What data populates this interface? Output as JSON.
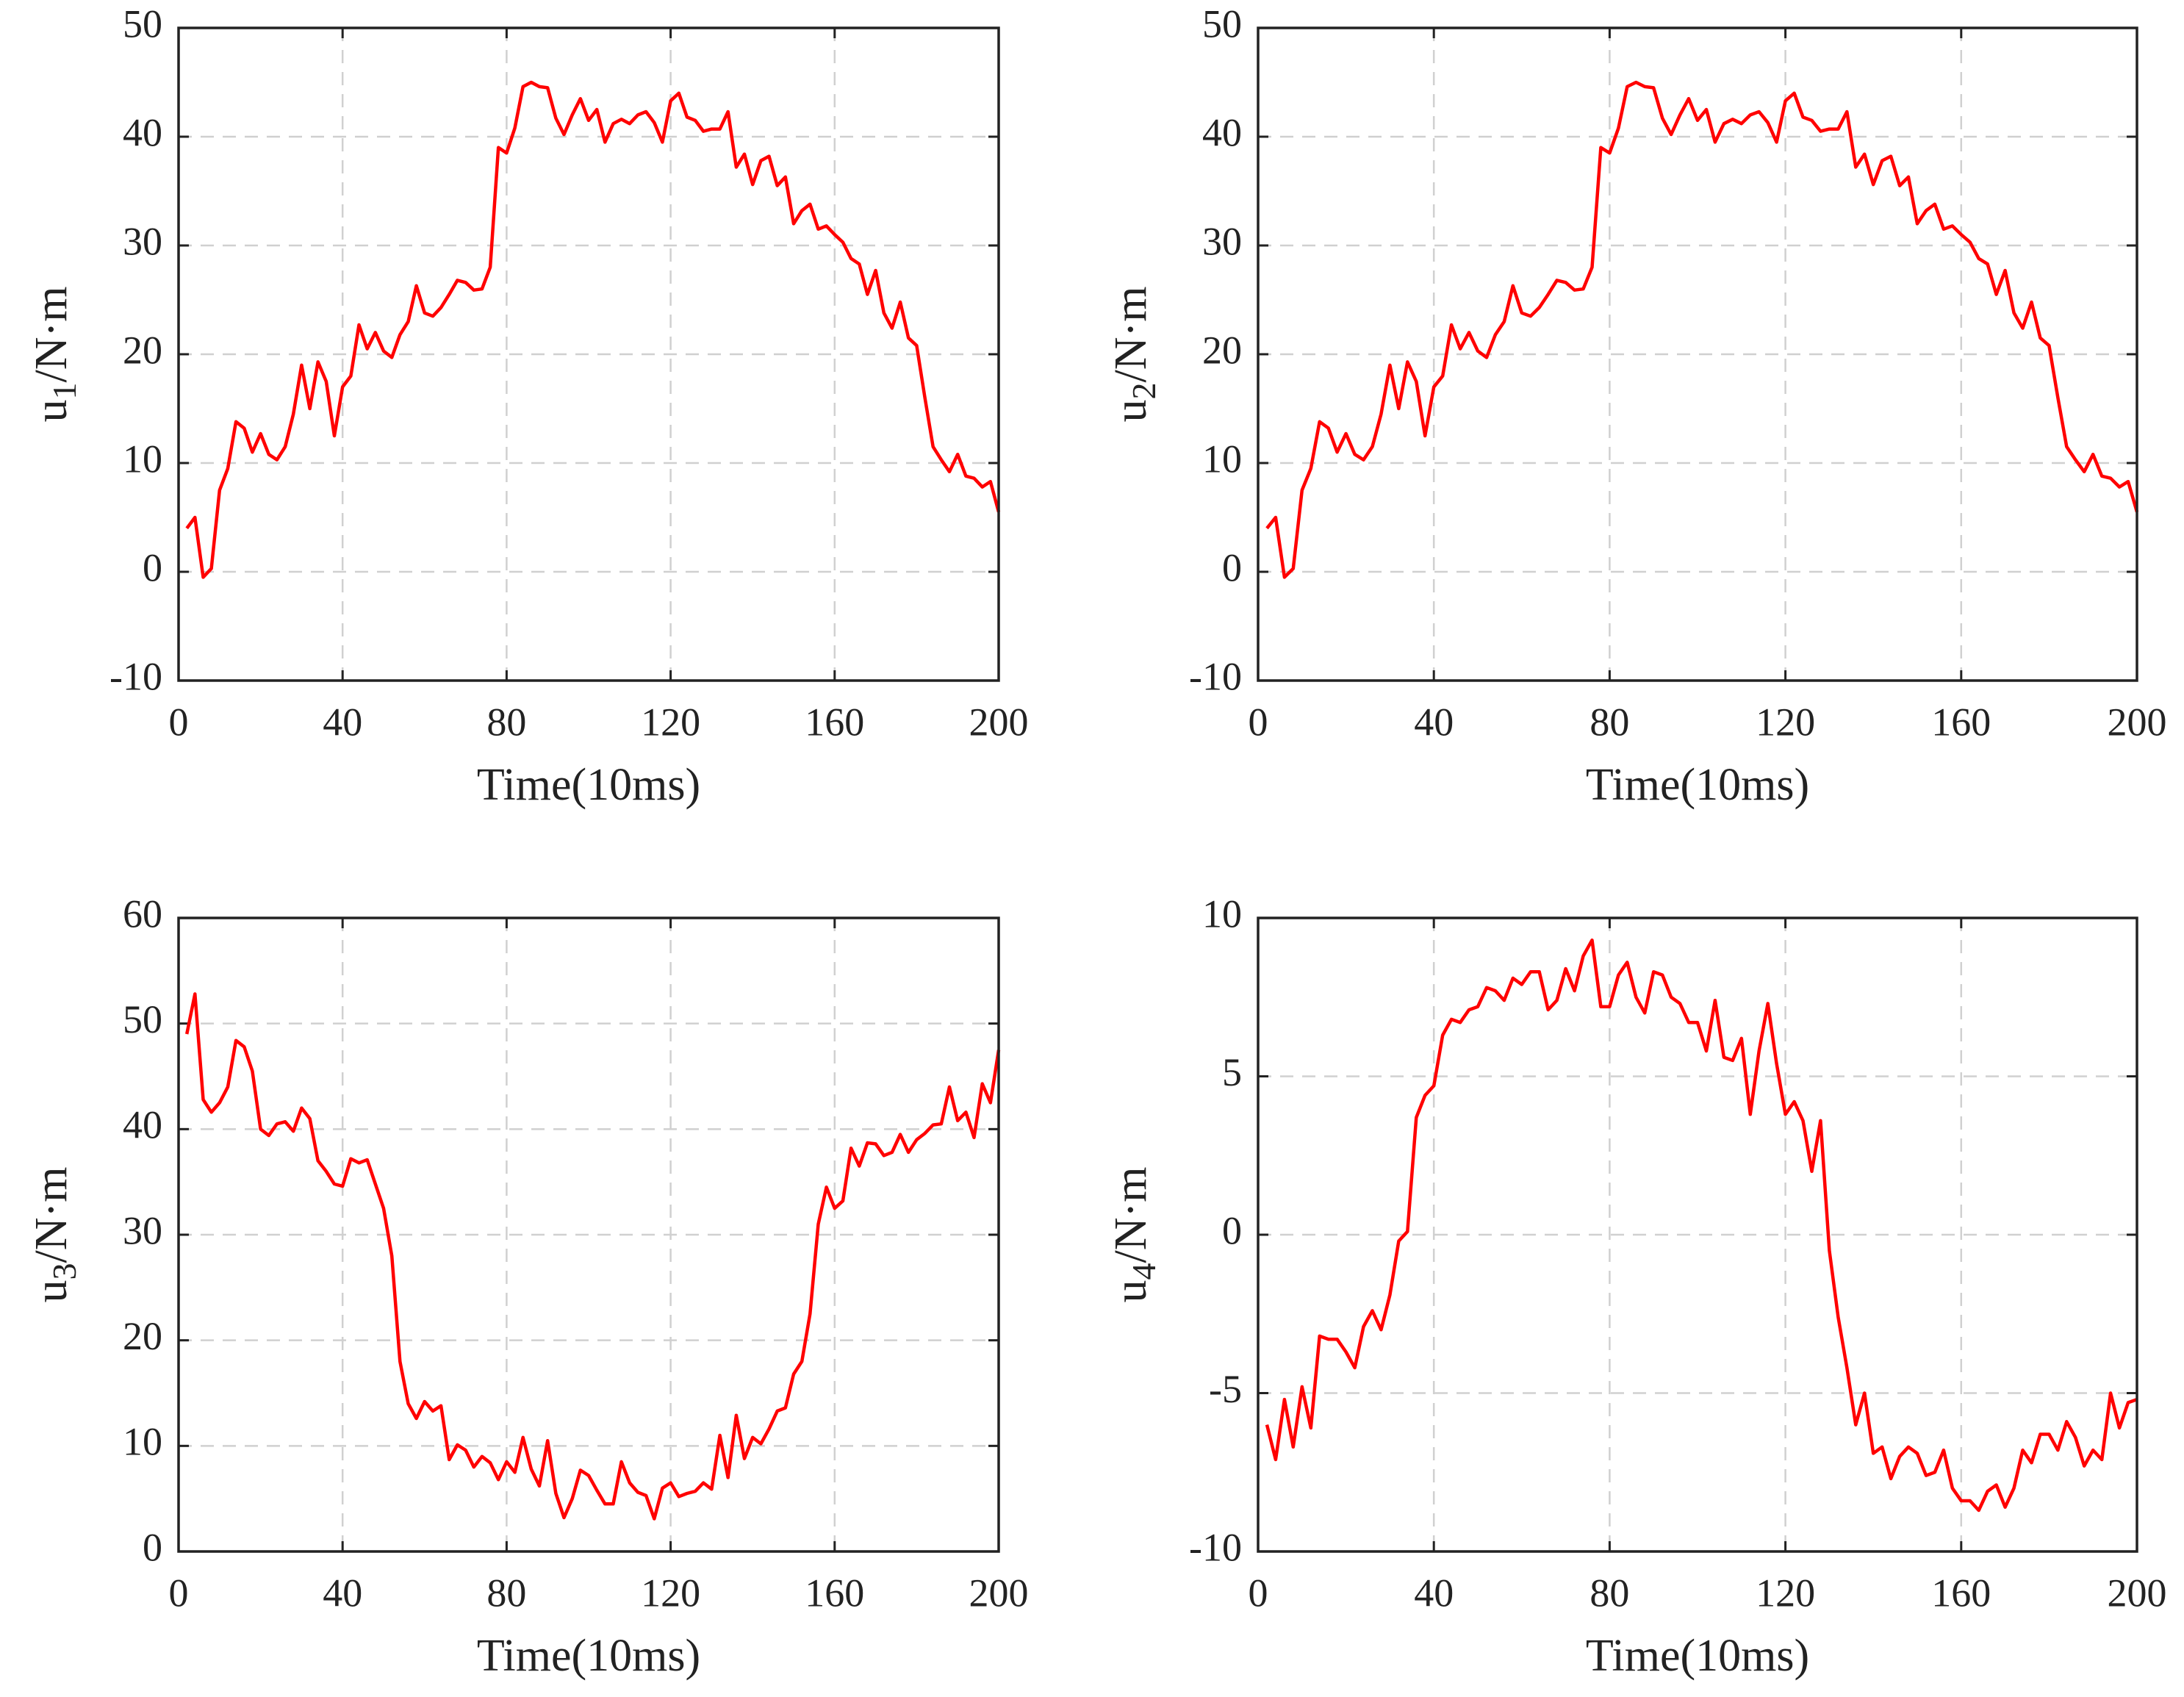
{
  "chart_data": [
    {
      "type": "line",
      "xlabel": "Time(10ms)",
      "ylabel": [
        "u",
        "1",
        "/N·m"
      ],
      "x": [
        2,
        4,
        6,
        8,
        10,
        12,
        14,
        16,
        18,
        20,
        22,
        24,
        26,
        28,
        30,
        32,
        34,
        36,
        38,
        40,
        42,
        44,
        46,
        48,
        50,
        52,
        54,
        56,
        58,
        60,
        62,
        64,
        66,
        68,
        70,
        72,
        74,
        76,
        78,
        80,
        82,
        84,
        86,
        88,
        90,
        92,
        94,
        96,
        98,
        100,
        102,
        104,
        106,
        108,
        110,
        112,
        114,
        116,
        118,
        120,
        122,
        124,
        126,
        128,
        130,
        132,
        134,
        136,
        138,
        140,
        142,
        144,
        146,
        148,
        150,
        152,
        154,
        156,
        158,
        160,
        162,
        164,
        166,
        168,
        170,
        172,
        174,
        176,
        178,
        180,
        182,
        184,
        186,
        188,
        190,
        192,
        194,
        196,
        198,
        200
      ],
      "series": [
        {
          "color": "#ff0000",
          "values": [
            4,
            5,
            -0.5,
            0.3,
            7.5,
            9.5,
            13.8,
            13.2,
            11,
            12.7,
            10.8,
            10.3,
            11.5,
            14.5,
            19,
            15,
            19.3,
            17.5,
            12.5,
            17,
            18,
            22.7,
            20.5,
            22,
            20.3,
            19.7,
            21.8,
            23,
            26.3,
            23.8,
            23.5,
            24.3,
            25.5,
            26.8,
            26.6,
            25.9,
            26,
            28,
            39,
            38.5,
            40.8,
            44.6,
            45,
            44.6,
            44.5,
            41.7,
            40.2,
            42,
            43.5,
            41.5,
            42.5,
            39.5,
            41.2,
            41.6,
            41.2,
            42,
            42.3,
            41.3,
            39.5,
            43.3,
            44,
            41.8,
            41.5,
            40.5,
            40.7,
            40.7,
            42.3,
            37.2,
            38.4,
            35.6,
            37.8,
            38.2,
            35.5,
            36.3,
            32,
            33.2,
            33.8,
            31.5,
            31.8,
            31,
            30.3,
            28.8,
            28.3,
            25.5,
            27.7,
            23.8,
            22.4,
            24.8,
            21.5,
            20.8,
            16,
            11.5,
            10.3,
            9.2,
            10.8,
            8.8,
            8.6,
            7.8,
            8.3,
            5.5
          ]
        }
      ],
      "xlim": [
        0,
        200
      ],
      "ylim": [
        -10,
        50
      ],
      "xticks": [
        0,
        40,
        80,
        120,
        160,
        200
      ],
      "yticks": [
        -10,
        0,
        10,
        20,
        30,
        40,
        50
      ],
      "grid": true
    },
    {
      "type": "line",
      "xlabel": "Time(10ms)",
      "ylabel": [
        "u",
        "2",
        "/N·m"
      ],
      "x": [
        2,
        4,
        6,
        8,
        10,
        12,
        14,
        16,
        18,
        20,
        22,
        24,
        26,
        28,
        30,
        32,
        34,
        36,
        38,
        40,
        42,
        44,
        46,
        48,
        50,
        52,
        54,
        56,
        58,
        60,
        62,
        64,
        66,
        68,
        70,
        72,
        74,
        76,
        78,
        80,
        82,
        84,
        86,
        88,
        90,
        92,
        94,
        96,
        98,
        100,
        102,
        104,
        106,
        108,
        110,
        112,
        114,
        116,
        118,
        120,
        122,
        124,
        126,
        128,
        130,
        132,
        134,
        136,
        138,
        140,
        142,
        144,
        146,
        148,
        150,
        152,
        154,
        156,
        158,
        160,
        162,
        164,
        166,
        168,
        170,
        172,
        174,
        176,
        178,
        180,
        182,
        184,
        186,
        188,
        190,
        192,
        194,
        196,
        198,
        200
      ],
      "series": [
        {
          "color": "#ff0000",
          "values": [
            4,
            5,
            -0.5,
            0.3,
            7.5,
            9.5,
            13.8,
            13.2,
            11,
            12.7,
            10.8,
            10.3,
            11.5,
            14.5,
            19,
            15,
            19.3,
            17.5,
            12.5,
            17,
            18,
            22.7,
            20.5,
            22,
            20.3,
            19.7,
            21.8,
            23,
            26.3,
            23.8,
            23.5,
            24.3,
            25.5,
            26.8,
            26.6,
            25.9,
            26,
            28,
            39,
            38.5,
            40.8,
            44.6,
            45,
            44.6,
            44.5,
            41.7,
            40.2,
            42,
            43.5,
            41.5,
            42.5,
            39.5,
            41.2,
            41.6,
            41.2,
            42,
            42.3,
            41.3,
            39.5,
            43.3,
            44,
            41.8,
            41.5,
            40.5,
            40.7,
            40.7,
            42.3,
            37.2,
            38.4,
            35.6,
            37.8,
            38.2,
            35.5,
            36.3,
            32,
            33.2,
            33.8,
            31.5,
            31.8,
            31,
            30.3,
            28.8,
            28.3,
            25.5,
            27.7,
            23.8,
            22.4,
            24.8,
            21.5,
            20.8,
            16,
            11.5,
            10.3,
            9.2,
            10.8,
            8.8,
            8.6,
            7.8,
            8.3,
            5.5
          ]
        }
      ],
      "xlim": [
        0,
        200
      ],
      "ylim": [
        -10,
        50
      ],
      "xticks": [
        0,
        40,
        80,
        120,
        160,
        200
      ],
      "yticks": [
        -10,
        0,
        10,
        20,
        30,
        40,
        50
      ],
      "grid": true
    },
    {
      "type": "line",
      "xlabel": "Time(10ms)",
      "ylabel": [
        "u",
        "3",
        "/N·m"
      ],
      "x": [
        2,
        4,
        6,
        8,
        10,
        12,
        14,
        16,
        18,
        20,
        22,
        24,
        26,
        28,
        30,
        32,
        34,
        36,
        38,
        40,
        42,
        44,
        46,
        48,
        50,
        52,
        54,
        56,
        58,
        60,
        62,
        64,
        66,
        68,
        70,
        72,
        74,
        76,
        78,
        80,
        82,
        84,
        86,
        88,
        90,
        92,
        94,
        96,
        98,
        100,
        102,
        104,
        106,
        108,
        110,
        112,
        114,
        116,
        118,
        120,
        122,
        124,
        126,
        128,
        130,
        132,
        134,
        136,
        138,
        140,
        142,
        144,
        146,
        148,
        150,
        152,
        154,
        156,
        158,
        160,
        162,
        164,
        166,
        168,
        170,
        172,
        174,
        176,
        178,
        180,
        182,
        184,
        186,
        188,
        190,
        192,
        194,
        196,
        198,
        200
      ],
      "series": [
        {
          "color": "#ff0000",
          "values": [
            49,
            52.8,
            42.8,
            41.6,
            42.5,
            44,
            48.4,
            47.8,
            45.5,
            40,
            39.4,
            40.5,
            40.7,
            39.8,
            42,
            41,
            37,
            36,
            34.8,
            34.6,
            37.2,
            36.8,
            37.1,
            34.8,
            32.5,
            28,
            18,
            14,
            12.6,
            14.2,
            13.3,
            13.8,
            8.7,
            10.1,
            9.6,
            8,
            9,
            8.4,
            6.8,
            8.5,
            7.5,
            10.8,
            7.8,
            6.2,
            10.5,
            5.5,
            3.2,
            5,
            7.7,
            7.2,
            5.8,
            4.5,
            4.5,
            8.5,
            6.5,
            5.6,
            5.3,
            3.1,
            6,
            6.5,
            5.2,
            5.5,
            5.7,
            6.5,
            5.9,
            11,
            7,
            12.9,
            8.8,
            10.8,
            10.2,
            11.6,
            13.3,
            13.6,
            16.8,
            18,
            22.5,
            31,
            34.5,
            32.5,
            33.2,
            38.2,
            36.5,
            38.7,
            38.6,
            37.5,
            37.8,
            39.5,
            37.8,
            39,
            39.6,
            40.4,
            40.5,
            44,
            40.8,
            41.6,
            39.2,
            44.3,
            42.5,
            47.5
          ]
        }
      ],
      "xlim": [
        0,
        200
      ],
      "ylim": [
        0,
        60
      ],
      "xticks": [
        0,
        40,
        80,
        120,
        160,
        200
      ],
      "yticks": [
        0,
        10,
        20,
        30,
        40,
        50,
        60
      ],
      "grid": true
    },
    {
      "type": "line",
      "xlabel": "Time(10ms)",
      "ylabel": [
        "u",
        "4",
        "/N·m"
      ],
      "x": [
        2,
        4,
        6,
        8,
        10,
        12,
        14,
        16,
        18,
        20,
        22,
        24,
        26,
        28,
        30,
        32,
        34,
        36,
        38,
        40,
        42,
        44,
        46,
        48,
        50,
        52,
        54,
        56,
        58,
        60,
        62,
        64,
        66,
        68,
        70,
        72,
        74,
        76,
        78,
        80,
        82,
        84,
        86,
        88,
        90,
        92,
        94,
        96,
        98,
        100,
        102,
        104,
        106,
        108,
        110,
        112,
        114,
        116,
        118,
        120,
        122,
        124,
        126,
        128,
        130,
        132,
        134,
        136,
        138,
        140,
        142,
        144,
        146,
        148,
        150,
        152,
        154,
        156,
        158,
        160,
        162,
        164,
        166,
        168,
        170,
        172,
        174,
        176,
        178,
        180,
        182,
        184,
        186,
        188,
        190,
        192,
        194,
        196,
        198,
        200
      ],
      "series": [
        {
          "color": "#ff0000",
          "values": [
            -6,
            -7.1,
            -5.2,
            -6.7,
            -4.8,
            -6.1,
            -3.2,
            -3.3,
            -3.3,
            -3.7,
            -4.2,
            -2.9,
            -2.4,
            -3,
            -1.9,
            -0.2,
            0.1,
            3.7,
            4.4,
            4.7,
            6.3,
            6.8,
            6.7,
            7.1,
            7.2,
            7.8,
            7.7,
            7.4,
            8.1,
            7.9,
            8.3,
            8.3,
            7.1,
            7.4,
            8.4,
            7.7,
            8.8,
            9.3,
            7.2,
            7.2,
            8.2,
            8.6,
            7.5,
            7,
            8.3,
            8.2,
            7.5,
            7.3,
            6.7,
            6.7,
            5.8,
            7.4,
            5.6,
            5.5,
            6.2,
            3.8,
            5.8,
            7.3,
            5.4,
            3.8,
            4.2,
            3.6,
            2,
            3.6,
            -0.5,
            -2.6,
            -4.2,
            -6,
            -5,
            -6.9,
            -6.7,
            -7.7,
            -7,
            -6.7,
            -6.9,
            -7.6,
            -7.5,
            -6.8,
            -8,
            -8.4,
            -8.4,
            -8.7,
            -8.1,
            -7.9,
            -8.6,
            -8,
            -6.8,
            -7.2,
            -6.3,
            -6.3,
            -6.8,
            -5.9,
            -6.4,
            -7.3,
            -6.8,
            -7.1,
            -5,
            -6.1,
            -5.3,
            -5.2
          ]
        }
      ],
      "xlim": [
        0,
        200
      ],
      "ylim": [
        -10,
        10
      ],
      "xticks": [
        0,
        40,
        80,
        120,
        160,
        200
      ],
      "yticks": [
        -10,
        -5,
        0,
        5,
        10
      ],
      "grid": true
    }
  ]
}
